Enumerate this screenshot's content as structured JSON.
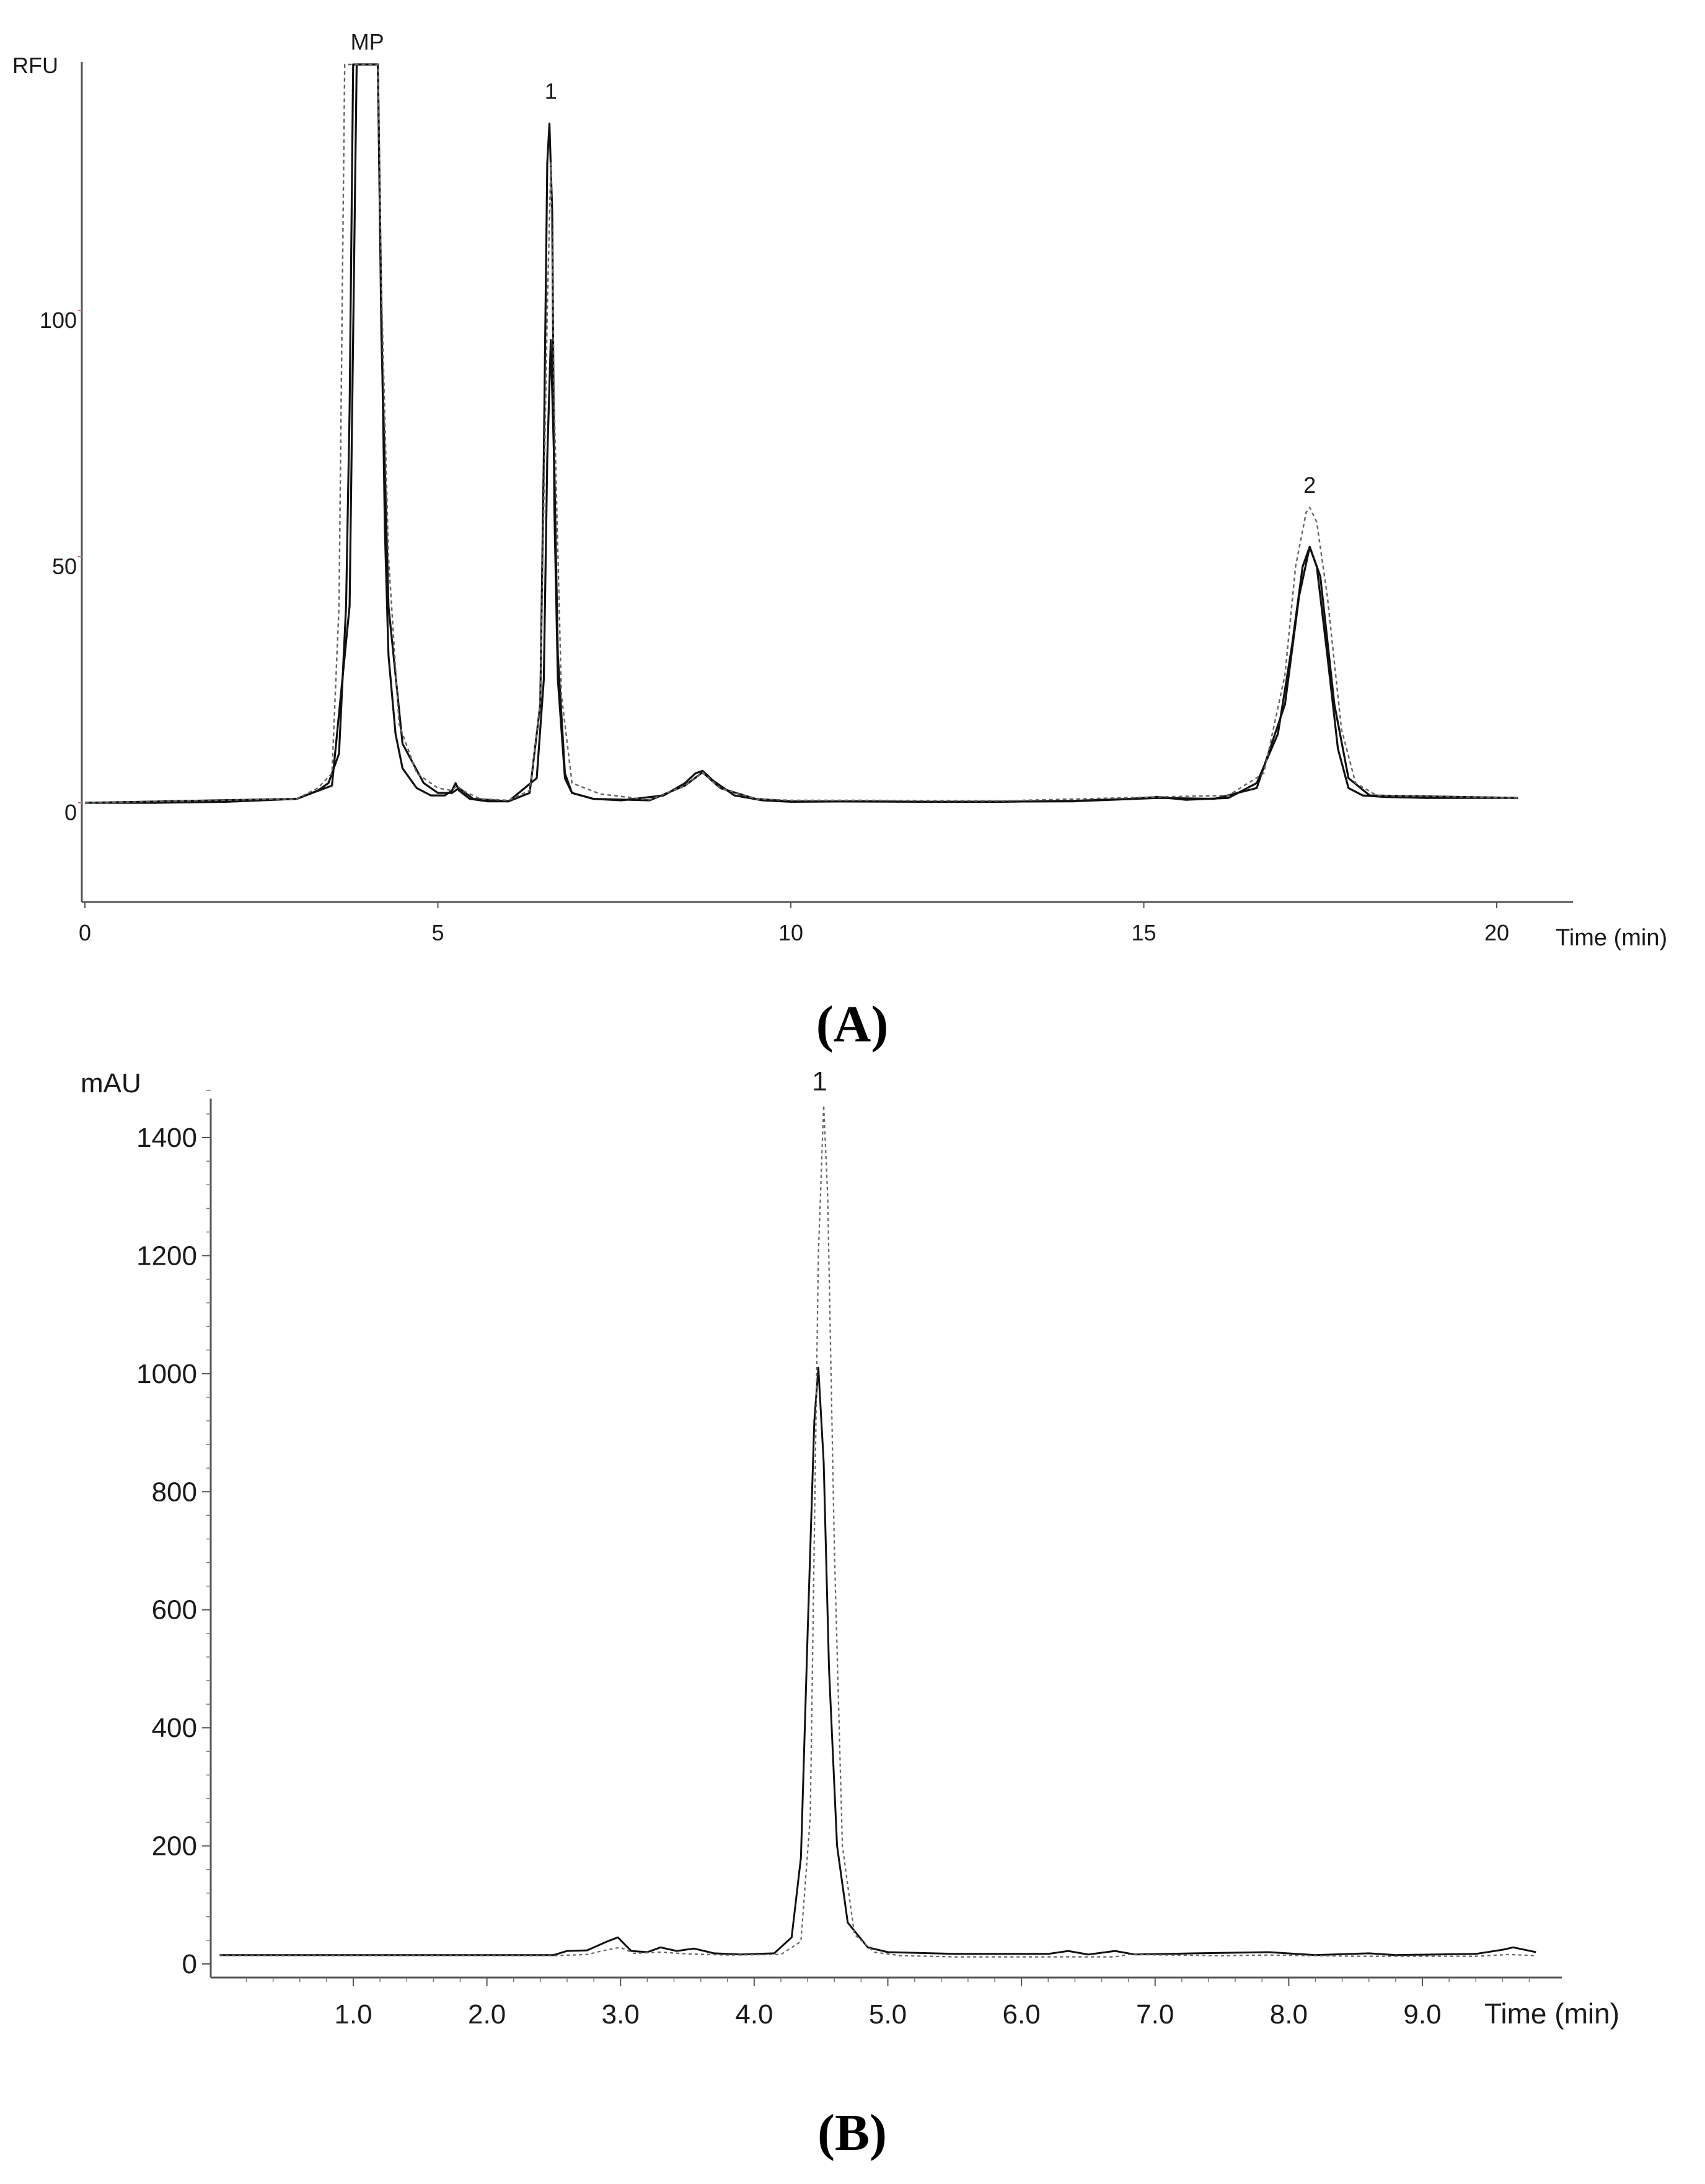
{
  "figure": {
    "caption_a": "(A)",
    "caption_b": "(B)"
  },
  "chart_data": [
    {
      "type": "line",
      "panel": "A",
      "ylabel": "RFU",
      "xlabel": "Time (min)",
      "xlim": [
        0,
        21
      ],
      "ylim": [
        -18,
        150
      ],
      "xticks": [
        0,
        5,
        10,
        15,
        20
      ],
      "yticks": [
        0,
        50,
        100
      ],
      "grid": false,
      "annotations": [
        {
          "text": "MP",
          "x": 4.0,
          "y": 153
        },
        {
          "text": "1",
          "x": 6.6,
          "y": 143
        },
        {
          "text": "2",
          "x": 17.35,
          "y": 63
        }
      ],
      "series": [
        {
          "style": "solid",
          "clip_at": 150,
          "x": [
            0,
            1,
            2,
            3,
            3.3,
            3.45,
            3.6,
            3.7,
            3.75,
            3.8,
            3.85,
            3.9,
            4.0,
            4.1,
            4.15,
            4.2,
            4.25,
            4.3,
            4.4,
            4.5,
            4.7,
            4.9,
            5.1,
            5.2,
            5.25,
            5.3,
            5.45,
            5.7,
            6.0,
            6.3,
            6.45,
            6.5,
            6.55,
            6.58,
            6.62,
            6.65,
            6.7,
            6.8,
            6.9,
            7.2,
            7.6,
            8.2,
            8.5,
            8.65,
            8.75,
            8.9,
            9.2,
            9.6,
            10,
            11,
            12,
            13,
            14,
            14.8,
            15.2,
            15.6,
            16.2,
            16.6,
            16.9,
            17.1,
            17.25,
            17.35,
            17.45,
            17.6,
            17.75,
            17.9,
            18.1,
            18.4,
            19,
            20,
            20.3
          ],
          "y": [
            0,
            0,
            0.2,
            0.8,
            2.5,
            4,
            10,
            40,
            80,
            150,
            150,
            150,
            150,
            150,
            150,
            100,
            55,
            30,
            14,
            7,
            3,
            1.5,
            1.5,
            2.5,
            4,
            2.5,
            0.8,
            0.3,
            0.3,
            2,
            20,
            70,
            130,
            138,
            120,
            60,
            25,
            5,
            2,
            0.8,
            0.5,
            1.5,
            4,
            6,
            6.5,
            4.5,
            1.5,
            0.5,
            0.2,
            0.3,
            0.2,
            0.2,
            0.4,
            0.8,
            1.2,
            0.6,
            1,
            4,
            14,
            32,
            48,
            52,
            48,
            30,
            11,
            3,
            1.5,
            1.2,
            1,
            1,
            1
          ]
        },
        {
          "style": "solid",
          "clip_at": 150,
          "x": [
            0,
            3,
            3.5,
            3.75,
            3.85,
            4.0,
            4.15,
            4.2,
            4.3,
            4.5,
            4.8,
            5.0,
            5.2,
            5.3,
            5.5,
            6.0,
            6.4,
            6.5,
            6.55,
            6.6,
            6.65,
            6.7,
            6.8,
            6.9,
            7.2,
            8.0,
            8.5,
            8.75,
            9.0,
            9.5,
            10,
            12,
            14,
            15.2,
            16,
            16.6,
            17.0,
            17.2,
            17.35,
            17.5,
            17.7,
            17.9,
            18.2,
            20.3
          ],
          "y": [
            0,
            0.8,
            3.5,
            40,
            150,
            150,
            150,
            95,
            40,
            12,
            4,
            2,
            2,
            3,
            0.8,
            0.3,
            5,
            25,
            70,
            94,
            68,
            30,
            6,
            2,
            0.8,
            0.5,
            3.5,
            6.2,
            3,
            0.8,
            0.3,
            0.2,
            0.3,
            1,
            0.8,
            3,
            20,
            42,
            52,
            46,
            20,
            5,
            1.5,
            1
          ]
        },
        {
          "style": "dashed",
          "clip_at": 150,
          "x": [
            0,
            3,
            3.3,
            3.5,
            3.6,
            3.68,
            3.72,
            3.8,
            4.0,
            4.1,
            4.15,
            4.2,
            4.3,
            4.45,
            4.7,
            5.0,
            5.2,
            5.27,
            5.35,
            5.6,
            6.0,
            6.3,
            6.45,
            6.55,
            6.6,
            6.65,
            6.75,
            6.9,
            7.3,
            8.0,
            8.5,
            8.75,
            9.0,
            9.5,
            10,
            11,
            13,
            15.2,
            16.2,
            16.7,
            17.0,
            17.15,
            17.3,
            17.35,
            17.45,
            17.6,
            17.8,
            18.0,
            18.3,
            20.3
          ],
          "y": [
            0,
            0.8,
            3,
            6,
            40,
            150,
            150,
            150,
            150,
            150,
            150,
            105,
            50,
            16,
            6,
            3,
            2.5,
            3.5,
            2.5,
            0.8,
            0.5,
            2.5,
            20,
            100,
            130,
            80,
            22,
            4,
            1.8,
            0.6,
            3.5,
            6.2,
            3,
            0.8,
            0.5,
            0.5,
            0.4,
            1.2,
            1.5,
            6,
            26,
            48,
            59,
            60,
            57,
            42,
            15,
            4,
            1.5,
            1
          ]
        }
      ]
    },
    {
      "type": "line",
      "panel": "B",
      "ylabel": "mAU",
      "xlabel": "Time (min)",
      "xlim": [
        0,
        9.85
      ],
      "ylim": [
        0,
        1480
      ],
      "xticks": [
        1.0,
        2.0,
        3.0,
        4.0,
        5.0,
        6.0,
        7.0,
        8.0,
        9.0
      ],
      "xtick_labels": [
        "1.0",
        "2.0",
        "3.0",
        "4.0",
        "5.0",
        "6.0",
        "7.0",
        "8.0",
        "9.0"
      ],
      "yticks": [
        0,
        200,
        400,
        600,
        800,
        1000,
        1200,
        1400
      ],
      "grid": false,
      "annotations": [
        {
          "text": "1",
          "x": 4.49,
          "y": 1480
        }
      ],
      "series": [
        {
          "style": "solid",
          "x": [
            0,
            2.5,
            2.6,
            2.75,
            2.9,
            2.98,
            3.08,
            3.2,
            3.3,
            3.42,
            3.55,
            3.7,
            3.9,
            4.15,
            4.28,
            4.35,
            4.4,
            4.45,
            4.48,
            4.52,
            4.56,
            4.62,
            4.7,
            4.85,
            5.0,
            5.5,
            6.2,
            6.35,
            6.5,
            6.7,
            6.85,
            7.3,
            7.85,
            8.2,
            8.6,
            8.8,
            9.4,
            9.6,
            9.68,
            9.85
          ],
          "y": [
            15,
            15,
            22,
            23,
            38,
            45,
            22,
            20,
            28,
            22,
            26,
            18,
            16,
            18,
            45,
            180,
            560,
            920,
            1010,
            850,
            500,
            200,
            70,
            28,
            20,
            17,
            17,
            22,
            16,
            22,
            16,
            18,
            20,
            15,
            18,
            15,
            17,
            24,
            28,
            20
          ]
        },
        {
          "style": "dashed",
          "x": [
            0,
            2.5,
            2.75,
            2.9,
            3.0,
            3.1,
            3.3,
            3.5,
            3.8,
            4.2,
            4.35,
            4.42,
            4.48,
            4.52,
            4.55,
            4.6,
            4.66,
            4.75,
            4.9,
            5.1,
            5.5,
            6.2,
            6.7,
            6.8,
            7.5,
            7.85,
            8.5,
            9.4,
            9.65,
            9.85
          ],
          "y": [
            14,
            14,
            16,
            24,
            28,
            18,
            20,
            17,
            15,
            16,
            38,
            250,
            1200,
            1455,
            1300,
            700,
            200,
            50,
            20,
            14,
            12,
            12,
            12,
            16,
            14,
            15,
            13,
            13,
            16,
            14
          ]
        }
      ]
    }
  ]
}
